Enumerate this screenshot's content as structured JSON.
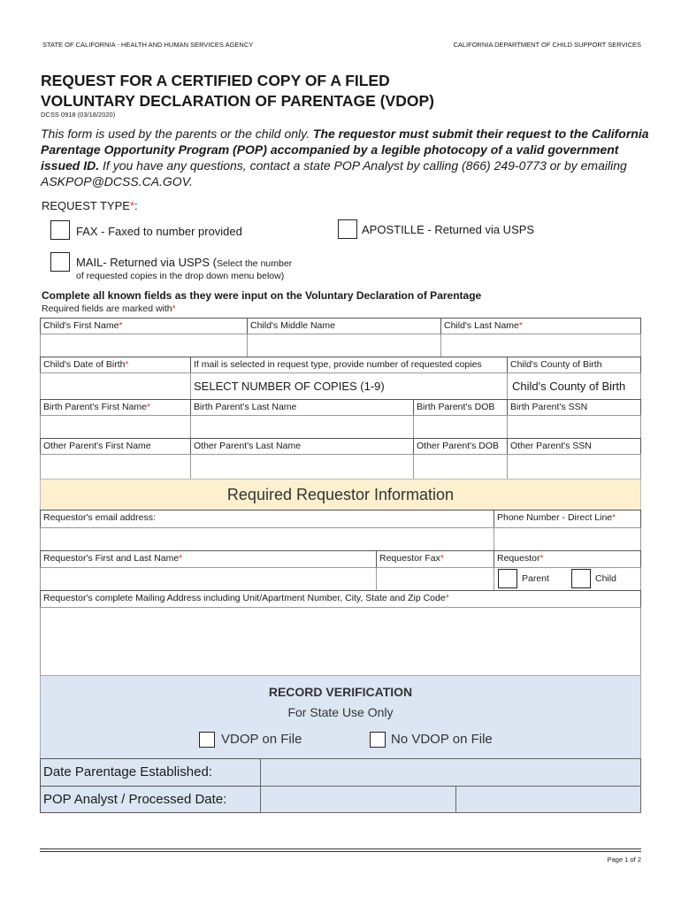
{
  "header": {
    "left": "STATE OF CALIFORNIA - HEALTH AND HUMAN SERVICES AGENCY",
    "right": "CALIFORNIA DEPARTMENT OF CHILD SUPPORT SERVICES"
  },
  "title": {
    "line1": "REQUEST FOR A CERTIFIED COPY OF A FILED",
    "line2": "VOLUNTARY DECLARATION OF PARENTAGE (VDOP)",
    "form_id": "DCSS 0918 (03/18/2020)"
  },
  "intro": {
    "part1": "This form is used by the parents or the child only.  ",
    "bold": "The requestor must submit their request to the California Parentage Opportunity Program (POP) accompanied by a legible photocopy of a valid government issued ID.",
    "part2": "  If you have any questions, contact a state POP Analyst by calling (866) 249-0773 or by emailing ASKPOP@DCSS.CA.GOV."
  },
  "request_type": {
    "label": "REQUEST TYPE",
    "fax": "FAX - Faxed to number provided",
    "apostille": "APOSTILLE - Returned via USPS",
    "mail": "MAIL- Returned via USPS (",
    "mail_small": "Select the number",
    "mail_line2": "of requested copies in the drop down menu below)"
  },
  "instructions": {
    "line1": "Complete all known fields as they were input on the Voluntary Declaration of Parentage",
    "line2": "Required fields are marked with"
  },
  "fields": {
    "child_first": "Child's First Name",
    "child_middle": "Child's Middle Name",
    "child_last": "Child's Last Name",
    "child_dob": "Child's Date of Birth",
    "copies_label": "If mail is selected in request type, provide number of requested copies",
    "copies_select": "SELECT NUMBER OF COPIES (1-9)",
    "county_label": "Child's County of Birth",
    "county_value": "Child's County of Birth",
    "bp_first": "Birth Parent's First Name",
    "bp_last": "Birth Parent's Last Name",
    "bp_dob": "Birth Parent's DOB",
    "bp_ssn": "Birth Parent's SSN",
    "op_first": "Other Parent's First Name",
    "op_last": "Other Parent's Last Name",
    "op_dob": "Other Parent's DOB",
    "op_ssn": "Other Parent's SSN"
  },
  "requestor": {
    "heading": "Required Requestor Information",
    "email": "Requestor's email address:",
    "phone": "Phone Number - Direct Line",
    "name": "Requestor's First and Last Name",
    "fax": "Requestor Fax",
    "type": "Requestor",
    "parent": "Parent",
    "child": "Child",
    "address": "Requestor's complete Mailing Address including Unit/Apartment Number, City, State and Zip Code"
  },
  "verification": {
    "heading": "RECORD VERIFICATION",
    "sub": "For State Use Only",
    "on_file": "VDOP on File",
    "no_file": "No VDOP on File",
    "date_label": "Date Parentage Established:",
    "analyst_label": "POP Analyst / Processed Date:"
  },
  "footer": {
    "page": "Page 1 of 2"
  },
  "colors": {
    "required": "#e03030",
    "requestor_band": "#fdf0cf",
    "verification_bg": "#dce6f2"
  }
}
